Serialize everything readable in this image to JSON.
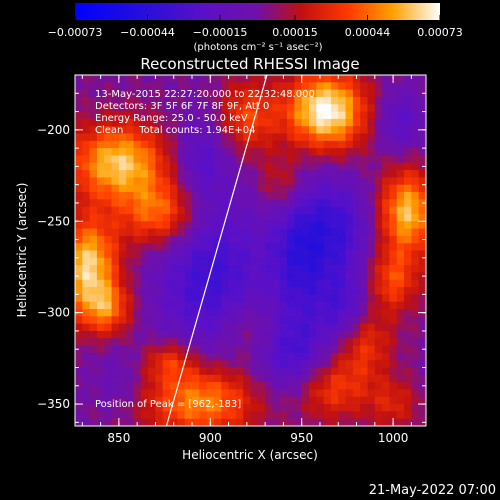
{
  "chart_data": {
    "type": "heatmap",
    "title": "Reconstructed RHESSI Image",
    "xlabel": "Heliocentric X (arcsec)",
    "ylabel": "Heliocentric Y (arcsec)",
    "xlim": [
      826,
      1018
    ],
    "ylim": [
      -362,
      -170
    ],
    "x_ticks": [
      850,
      900,
      950,
      1000
    ],
    "y_ticks": [
      -200,
      -250,
      -300,
      -350
    ],
    "x_tick_labels": [
      "850",
      "900",
      "950",
      "1000"
    ],
    "y_tick_labels": [
      "−200",
      "−250",
      "−300",
      "−350"
    ],
    "colorbar": {
      "range": [
        -0.00073,
        0.00073
      ],
      "ticks": [
        -0.00073,
        -0.00044,
        -0.00015,
        0.00015,
        0.00044,
        0.00073
      ],
      "tick_labels": [
        "−0.00073",
        "−0.00044",
        "−0.00015",
        "0.00015",
        "0.00044",
        "0.00073"
      ],
      "units_label": "(photons cm⁻² s⁻¹ asec⁻²)"
    },
    "annotations": [
      "13-May-2015 22:27:20.000 to 22:32:48.000",
      "Detectors: 3F 5F 6F 7F 8F 9F, Att 0",
      "Energy Range: 25.0 - 50.0 keV",
      "Clean     Total counts: 1.94E+04"
    ],
    "peak_label": "Position of Peak = [962,-183]",
    "limb_line": [
      [
        876,
        -362
      ],
      [
        931,
        -170
      ]
    ],
    "blobs": [
      {
        "x": 963,
        "y": -190,
        "sx": 16,
        "sy": 15,
        "a": 0.00073
      },
      {
        "x": 850,
        "y": -218,
        "sx": 19,
        "sy": 15,
        "a": 0.0006
      },
      {
        "x": 873,
        "y": -246,
        "sx": 15,
        "sy": 13,
        "a": 0.00046
      },
      {
        "x": 833,
        "y": -274,
        "sx": 12,
        "sy": 18,
        "a": 0.00062
      },
      {
        "x": 843,
        "y": -298,
        "sx": 10,
        "sy": 10,
        "a": 0.00038
      },
      {
        "x": 920,
        "y": -193,
        "sx": 11,
        "sy": 14,
        "a": 0.00034
      },
      {
        "x": 1008,
        "y": -245,
        "sx": 11,
        "sy": 16,
        "a": 0.00058
      },
      {
        "x": 1000,
        "y": -282,
        "sx": 10,
        "sy": 12,
        "a": 0.00034
      },
      {
        "x": 983,
        "y": -315,
        "sx": 11,
        "sy": 15,
        "a": 0.00036
      },
      {
        "x": 965,
        "y": -342,
        "sx": 14,
        "sy": 12,
        "a": 0.00032
      },
      {
        "x": 1000,
        "y": -350,
        "sx": 10,
        "sy": 10,
        "a": 0.00022
      },
      {
        "x": 895,
        "y": -348,
        "sx": 22,
        "sy": 14,
        "a": 0.00052
      },
      {
        "x": 878,
        "y": -326,
        "sx": 10,
        "sy": 8,
        "a": 0.00028
      },
      {
        "x": 920,
        "y": -310,
        "sx": 12,
        "sy": 12,
        "a": 0.00018
      },
      {
        "x": 940,
        "y": -230,
        "sx": 10,
        "sy": 12,
        "a": 0.00026
      },
      {
        "x": 900,
        "y": -280,
        "sx": 22,
        "sy": 34,
        "a": -0.00036
      },
      {
        "x": 895,
        "y": -215,
        "sx": 10,
        "sy": 16,
        "a": -0.00022
      },
      {
        "x": 950,
        "y": -265,
        "sx": 12,
        "sy": 30,
        "a": -0.0004
      },
      {
        "x": 972,
        "y": -255,
        "sx": 12,
        "sy": 20,
        "a": -0.0003
      },
      {
        "x": 975,
        "y": -300,
        "sx": 10,
        "sy": 14,
        "a": -0.00034
      },
      {
        "x": 945,
        "y": -325,
        "sx": 14,
        "sy": 16,
        "a": -0.00028
      },
      {
        "x": 1003,
        "y": -195,
        "sx": 10,
        "sy": 12,
        "a": -0.00024
      },
      {
        "x": 850,
        "y": -338,
        "sx": 10,
        "sy": 12,
        "a": -0.00012
      }
    ]
  },
  "footer": {
    "timestamp": "21-May-2022 07:00"
  }
}
